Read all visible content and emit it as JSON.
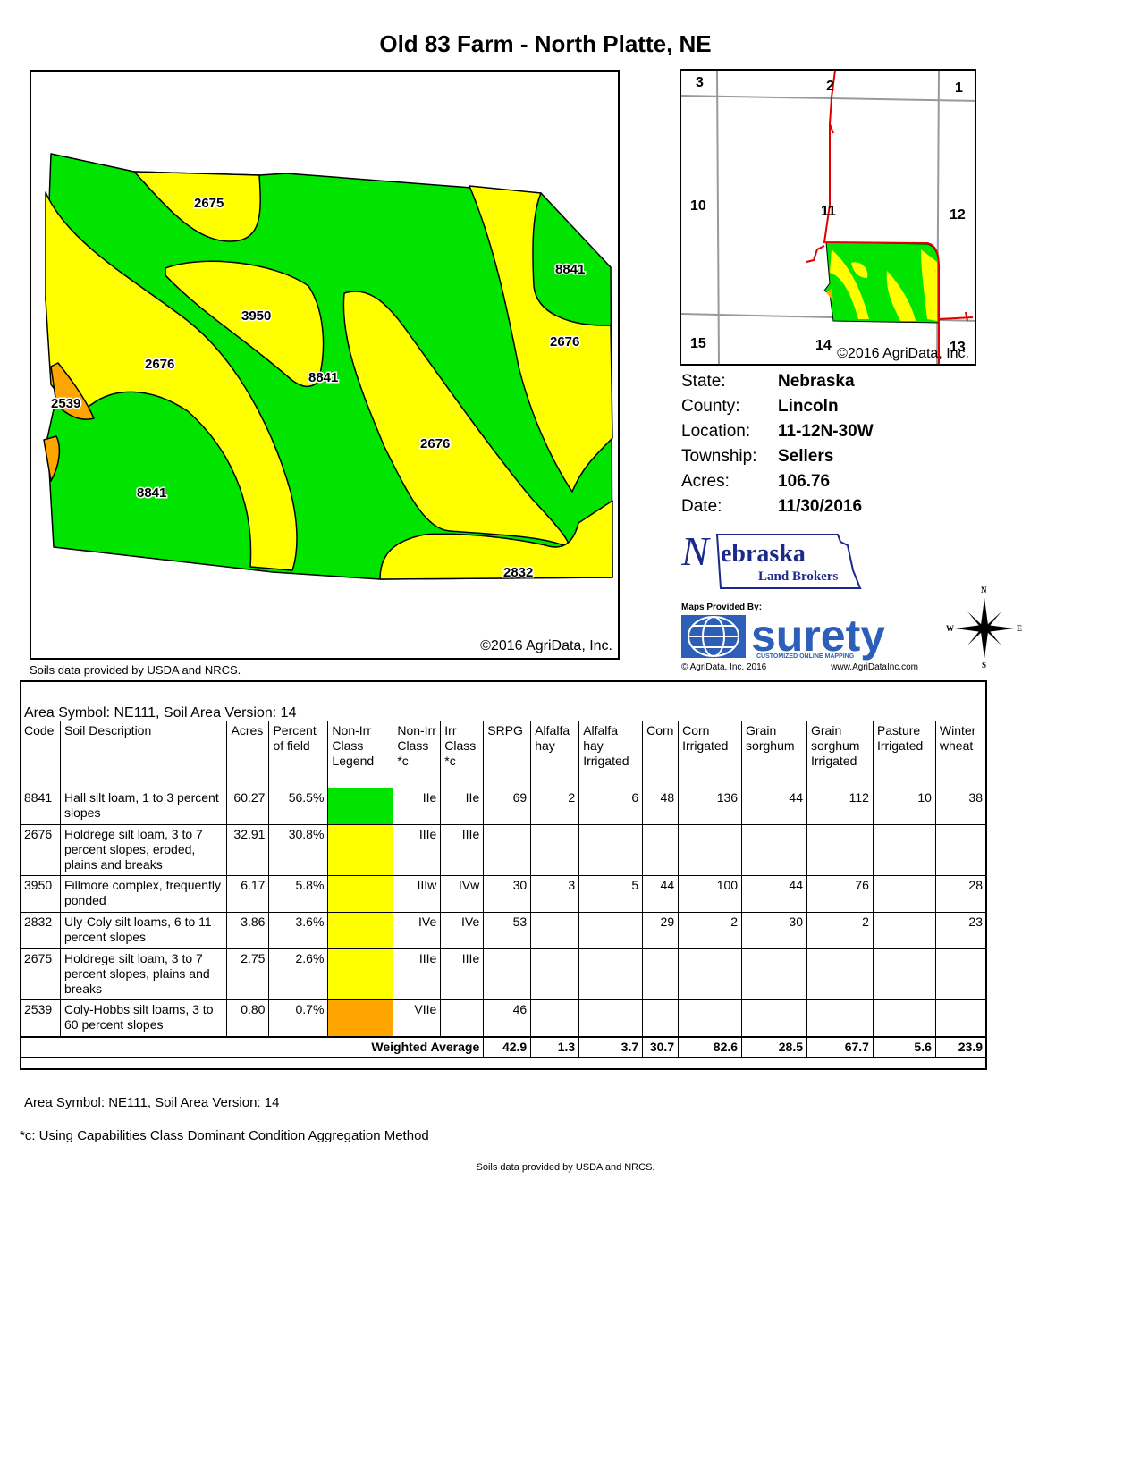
{
  "title": "Old 83 Farm - North Platte, NE",
  "map": {
    "labels": [
      "2675",
      "3950",
      "8841",
      "2676",
      "2676",
      "2539",
      "8841",
      "8841",
      "2676",
      "2832"
    ],
    "copyright": "©2016 AgriData, Inc.",
    "soils_note": "Soils data provided by USDA and NRCS.",
    "colors": {
      "green": "#00e400",
      "yellow": "#ffff00",
      "orange": "#ffa500"
    }
  },
  "locator": {
    "sections": [
      "3",
      "2",
      "1",
      "10",
      "11",
      "12",
      "15",
      "14",
      "13"
    ],
    "copyright": "©2016 AgriData, Inc."
  },
  "info": {
    "state_label": "State:",
    "state": "Nebraska",
    "county_label": "County:",
    "county": "Lincoln",
    "location_label": "Location:",
    "location": "11-12N-30W",
    "township_label": "Township:",
    "township": "Sellers",
    "acres_label": "Acres:",
    "acres": "106.76",
    "date_label": "Date:",
    "date": "11/30/2016"
  },
  "branding": {
    "nlb_main": "ebraska",
    "nlb_initial": "N",
    "nlb_sub": "Land Brokers",
    "maps_by": "Maps Provided By:",
    "surety": "surety",
    "surety_tag": "CUSTOMIZED ONLINE MAPPING",
    "surety_copy": "© AgriData, Inc. 2016",
    "surety_url": "www.AgriDataInc.com",
    "compass": {
      "n": "N",
      "s": "S",
      "e": "E",
      "w": "W"
    }
  },
  "table": {
    "area_heading": "Area Symbol: NE111, Soil Area Version: 14",
    "headers": [
      "Code",
      "Soil Description",
      "Acres",
      "Percent of field",
      "Non-Irr Class Legend",
      "Non-Irr Class *c",
      "Irr Class *c",
      "SRPG",
      "Alfalfa hay",
      "Alfalfa hay Irrigated",
      "Corn",
      "Corn Irrigated",
      "Grain sorghum",
      "Grain sorghum Irrigated",
      "Pasture Irrigated",
      "Winter wheat"
    ],
    "rows": [
      {
        "code": "8841",
        "desc": "Hall silt loam, 1 to 3 percent slopes",
        "acres": "60.27",
        "pct": "56.5%",
        "color": "#00e400",
        "nonirr": "IIe",
        "irr": "IIe",
        "srpg": "69",
        "alf": "2",
        "alf_irr": "6",
        "corn": "48",
        "corn_irr": "136",
        "gs": "44",
        "gs_irr": "112",
        "past_irr": "10",
        "ww": "38"
      },
      {
        "code": "2676",
        "desc": "Holdrege silt loam, 3 to 7 percent slopes, eroded, plains and breaks",
        "acres": "32.91",
        "pct": "30.8%",
        "color": "#ffff00",
        "nonirr": "IIIe",
        "irr": "IIIe",
        "srpg": "",
        "alf": "",
        "alf_irr": "",
        "corn": "",
        "corn_irr": "",
        "gs": "",
        "gs_irr": "",
        "past_irr": "",
        "ww": ""
      },
      {
        "code": "3950",
        "desc": "Fillmore complex, frequently ponded",
        "acres": "6.17",
        "pct": "5.8%",
        "color": "#ffff00",
        "nonirr": "IIIw",
        "irr": "IVw",
        "srpg": "30",
        "alf": "3",
        "alf_irr": "5",
        "corn": "44",
        "corn_irr": "100",
        "gs": "44",
        "gs_irr": "76",
        "past_irr": "",
        "ww": "28"
      },
      {
        "code": "2832",
        "desc": "Uly-Coly silt loams, 6 to 11 percent slopes",
        "acres": "3.86",
        "pct": "3.6%",
        "color": "#ffff00",
        "nonirr": "IVe",
        "irr": "IVe",
        "srpg": "53",
        "alf": "",
        "alf_irr": "",
        "corn": "29",
        "corn_irr": "2",
        "gs": "30",
        "gs_irr": "2",
        "past_irr": "",
        "ww": "23"
      },
      {
        "code": "2675",
        "desc": "Holdrege silt loam, 3 to 7 percent slopes, plains and breaks",
        "acres": "2.75",
        "pct": "2.6%",
        "color": "#ffff00",
        "nonirr": "IIIe",
        "irr": "IIIe",
        "srpg": "",
        "alf": "",
        "alf_irr": "",
        "corn": "",
        "corn_irr": "",
        "gs": "",
        "gs_irr": "",
        "past_irr": "",
        "ww": ""
      },
      {
        "code": "2539",
        "desc": "Coly-Hobbs silt loams, 3 to 60 percent slopes",
        "acres": "0.80",
        "pct": "0.7%",
        "color": "#ffa500",
        "nonirr": "VIIe",
        "irr": "",
        "srpg": "46",
        "alf": "",
        "alf_irr": "",
        "corn": "",
        "corn_irr": "",
        "gs": "",
        "gs_irr": "",
        "past_irr": "",
        "ww": ""
      }
    ],
    "weighted": {
      "label": "Weighted Average",
      "srpg": "42.9",
      "alf": "1.3",
      "alf_irr": "3.7",
      "corn": "30.7",
      "corn_irr": "82.6",
      "gs": "28.5",
      "gs_irr": "67.7",
      "past_irr": "5.6",
      "ww": "23.9"
    }
  },
  "footer": {
    "area": "Area Symbol: NE111, Soil Area Version: 14",
    "note": "*c:  Using Capabilities Class Dominant Condition Aggregation Method",
    "soils": "Soils data provided by USDA and NRCS."
  }
}
